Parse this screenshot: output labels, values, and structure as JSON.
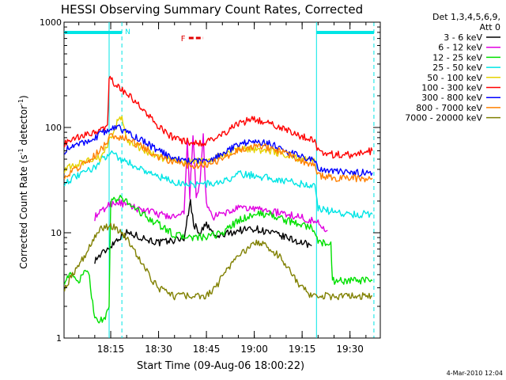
{
  "chart_data": {
    "type": "line",
    "title": "HESSI Observing Summary Count Rates, Corrected",
    "xlabel": "Start Time (09-Aug-06 18:00:22)",
    "ylabel_main": "Corrected Count Rate (s",
    "ylabel_sup1": "-1",
    "ylabel_mid": " detector",
    "ylabel_sup2": "-1",
    "ylabel_end": ")",
    "date_stamp": "4-Mar-2010 12:04",
    "legend_header_1": "Det 1,3,4,5,6,9,",
    "legend_header_2": "Att 0",
    "y_scale": "log",
    "ylim": [
      1,
      1000
    ],
    "xlim": [
      0.37,
      99.5
    ],
    "x_units": "minutes after 18:00",
    "y_ticks": [
      {
        "v": 1,
        "label": "1"
      },
      {
        "v": 10,
        "label": "10"
      },
      {
        "v": 100,
        "label": "100"
      },
      {
        "v": 1000,
        "label": "1000"
      }
    ],
    "x_ticks": [
      {
        "v": 15,
        "label": "18:15"
      },
      {
        "v": 30,
        "label": "18:30"
      },
      {
        "v": 45,
        "label": "18:45"
      },
      {
        "v": 60,
        "label": "19:00"
      },
      {
        "v": 75,
        "label": "19:15"
      },
      {
        "v": 90,
        "label": "19:30"
      }
    ],
    "night_bars": [
      {
        "label": "N",
        "x_start": 0.37,
        "x_end": 18.5,
        "color": "#00e5e5"
      },
      {
        "label": "",
        "x_start": 79.5,
        "x_end": 97.5,
        "color": "#00e5e5"
      }
    ],
    "night_vlines": [
      18.5,
      97.5
    ],
    "saa_vlines": [
      14.5,
      79.5
    ],
    "flare_flag": {
      "label": "F",
      "x_start": 37,
      "x_end": 44,
      "color": "#e00000"
    },
    "series": [
      {
        "name": "3 - 6 keV",
        "color": "#000000",
        "points": [
          [
            10,
            5.5
          ],
          [
            15,
            7.5
          ],
          [
            17.5,
            9
          ],
          [
            20,
            10
          ],
          [
            25,
            9
          ],
          [
            30,
            8
          ],
          [
            35,
            8.5
          ],
          [
            38,
            9
          ],
          [
            40,
            20
          ],
          [
            41,
            12
          ],
          [
            43,
            10
          ],
          [
            45,
            12
          ],
          [
            48,
            9
          ],
          [
            50,
            9.5
          ],
          [
            55,
            10.5
          ],
          [
            60,
            11
          ],
          [
            65,
            10
          ],
          [
            70,
            9
          ],
          [
            75,
            8
          ],
          [
            78,
            7.5
          ]
        ]
      },
      {
        "name": "6 - 12 keV",
        "color": "#e000e0",
        "points": [
          [
            10,
            14
          ],
          [
            15,
            19
          ],
          [
            17.5,
            19.5
          ],
          [
            20,
            18
          ],
          [
            25,
            16.5
          ],
          [
            30,
            15
          ],
          [
            35,
            14
          ],
          [
            38,
            15
          ],
          [
            39,
            70
          ],
          [
            39.8,
            22
          ],
          [
            40.8,
            90
          ],
          [
            41.8,
            20
          ],
          [
            43,
            30
          ],
          [
            44,
            85
          ],
          [
            45,
            18
          ],
          [
            47,
            14
          ],
          [
            50,
            15
          ],
          [
            55,
            17
          ],
          [
            60,
            17
          ],
          [
            65,
            16
          ],
          [
            70,
            15
          ],
          [
            75,
            14
          ],
          [
            78,
            13
          ],
          [
            80,
            12.5
          ],
          [
            83,
            10.5
          ]
        ]
      },
      {
        "name": "12 - 25 keV",
        "color": "#00e000",
        "points": [
          [
            0.5,
            3.5
          ],
          [
            2,
            4
          ],
          [
            5,
            3.5
          ],
          [
            8,
            4.5
          ],
          [
            10,
            1.5
          ],
          [
            13,
            1.5
          ],
          [
            14.5,
            2
          ],
          [
            15,
            20
          ],
          [
            18,
            21
          ],
          [
            20,
            20
          ],
          [
            25,
            15
          ],
          [
            30,
            12
          ],
          [
            35,
            9.5
          ],
          [
            40,
            9
          ],
          [
            45,
            9
          ],
          [
            50,
            10
          ],
          [
            55,
            13
          ],
          [
            60,
            15
          ],
          [
            65,
            15
          ],
          [
            70,
            13
          ],
          [
            75,
            12
          ],
          [
            78,
            11
          ],
          [
            79,
            10.5
          ],
          [
            80,
            8
          ],
          [
            84,
            8
          ],
          [
            84.5,
            3.5
          ],
          [
            90,
            3.5
          ],
          [
            97,
            3.5
          ]
        ]
      },
      {
        "name": "25 - 50 keV",
        "color": "#00e5e5",
        "points": [
          [
            0.5,
            30
          ],
          [
            5,
            35
          ],
          [
            10,
            42
          ],
          [
            15,
            60
          ],
          [
            18,
            50
          ],
          [
            20,
            47
          ],
          [
            25,
            40
          ],
          [
            30,
            34
          ],
          [
            35,
            30
          ],
          [
            40,
            29
          ],
          [
            45,
            29
          ],
          [
            50,
            30
          ],
          [
            55,
            36
          ],
          [
            60,
            35
          ],
          [
            65,
            33
          ],
          [
            70,
            31
          ],
          [
            75,
            29
          ],
          [
            79,
            28
          ],
          [
            80,
            17
          ],
          [
            84,
            16
          ],
          [
            90,
            15
          ],
          [
            97,
            15
          ]
        ]
      },
      {
        "name": "50 - 100 keV",
        "color": "#e5d200",
        "points": [
          [
            0.5,
            40
          ],
          [
            5,
            45
          ],
          [
            10,
            52
          ],
          [
            12,
            50
          ],
          [
            15,
            80
          ],
          [
            17,
            110
          ],
          [
            18.5,
            130
          ],
          [
            20,
            75
          ],
          [
            25,
            62
          ],
          [
            30,
            52
          ],
          [
            35,
            48
          ],
          [
            40,
            47
          ],
          [
            45,
            48
          ],
          [
            50,
            55
          ],
          [
            55,
            62
          ],
          [
            60,
            62
          ],
          [
            65,
            60
          ],
          [
            70,
            55
          ],
          [
            75,
            50
          ],
          [
            79,
            48
          ]
        ]
      },
      {
        "name": "100 - 300 keV",
        "color": "#ff0000",
        "points": [
          [
            0.5,
            70
          ],
          [
            5,
            80
          ],
          [
            10,
            90
          ],
          [
            14,
            100
          ],
          [
            14.5,
            290
          ],
          [
            17,
            250
          ],
          [
            20,
            210
          ],
          [
            25,
            150
          ],
          [
            30,
            100
          ],
          [
            35,
            78
          ],
          [
            40,
            72
          ],
          [
            45,
            72
          ],
          [
            50,
            85
          ],
          [
            55,
            110
          ],
          [
            60,
            120
          ],
          [
            65,
            110
          ],
          [
            70,
            95
          ],
          [
            75,
            82
          ],
          [
            79,
            78
          ],
          [
            80,
            60
          ],
          [
            85,
            55
          ],
          [
            90,
            55
          ],
          [
            97,
            60
          ]
        ]
      },
      {
        "name": "300 - 800 keV",
        "color": "#0000ff",
        "points": [
          [
            0.5,
            60
          ],
          [
            5,
            70
          ],
          [
            10,
            80
          ],
          [
            14,
            95
          ],
          [
            15,
            100
          ],
          [
            18,
            98
          ],
          [
            20,
            90
          ],
          [
            25,
            75
          ],
          [
            30,
            60
          ],
          [
            35,
            50
          ],
          [
            40,
            48
          ],
          [
            45,
            48
          ],
          [
            50,
            55
          ],
          [
            55,
            70
          ],
          [
            60,
            75
          ],
          [
            65,
            70
          ],
          [
            70,
            60
          ],
          [
            75,
            52
          ],
          [
            79,
            48
          ],
          [
            80,
            40
          ],
          [
            85,
            38
          ],
          [
            90,
            37
          ],
          [
            97,
            37
          ]
        ]
      },
      {
        "name": "800 - 7000 keV",
        "color": "#ff8000",
        "points": [
          [
            0.5,
            35
          ],
          [
            5,
            42
          ],
          [
            10,
            55
          ],
          [
            14,
            72
          ],
          [
            15,
            85
          ],
          [
            18,
            80
          ],
          [
            20,
            78
          ],
          [
            25,
            65
          ],
          [
            30,
            53
          ],
          [
            35,
            46
          ],
          [
            40,
            44
          ],
          [
            45,
            44
          ],
          [
            50,
            50
          ],
          [
            55,
            62
          ],
          [
            60,
            68
          ],
          [
            65,
            64
          ],
          [
            70,
            56
          ],
          [
            75,
            48
          ],
          [
            79,
            45
          ],
          [
            80,
            35
          ],
          [
            85,
            33
          ],
          [
            90,
            33
          ],
          [
            97,
            33
          ]
        ]
      },
      {
        "name": "7000 - 20000 keV",
        "color": "#808000",
        "points": [
          [
            0.5,
            3
          ],
          [
            3,
            4
          ],
          [
            5,
            5
          ],
          [
            8,
            7
          ],
          [
            10,
            9
          ],
          [
            12,
            11
          ],
          [
            14,
            11.5
          ],
          [
            17,
            11
          ],
          [
            20,
            9
          ],
          [
            22,
            7
          ],
          [
            25,
            5
          ],
          [
            28,
            3.5
          ],
          [
            30,
            3
          ],
          [
            35,
            2.5
          ],
          [
            40,
            2.5
          ],
          [
            45,
            2.5
          ],
          [
            48,
            3
          ],
          [
            50,
            4
          ],
          [
            55,
            6
          ],
          [
            60,
            8
          ],
          [
            63,
            8
          ],
          [
            65,
            7
          ],
          [
            68,
            6
          ],
          [
            70,
            5
          ],
          [
            73,
            3.5
          ],
          [
            75,
            3
          ],
          [
            78,
            2.5
          ],
          [
            80,
            2.5
          ],
          [
            85,
            2.5
          ],
          [
            90,
            2.5
          ],
          [
            97,
            2.5
          ]
        ]
      }
    ]
  }
}
